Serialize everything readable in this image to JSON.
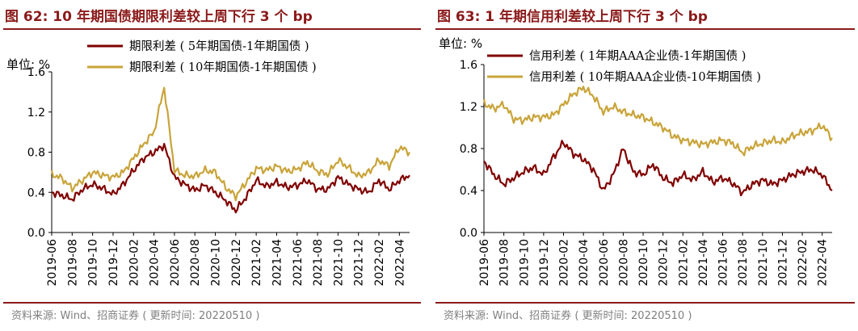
{
  "colors": {
    "dark_red": "#800000",
    "gold": "#c9a43a",
    "title": "#8b1a1a",
    "source": "#7f7f7f"
  },
  "charts": [
    {
      "figure_title": "图 62:  10 年期国债期限利差较上周下行 3 个 bp",
      "unit_label": "单位:  %",
      "source": "资料来源:  Wind、招商证券 ( 更新时间: 20220510 )"
    },
    {
      "figure_title": "图 63:  1 年期信用利差较上周下行 3 个 bp",
      "unit_label": "单位:  %",
      "source": "资料来源:  Wind、招商证券 ( 更新时间: 20220510 )"
    }
  ],
  "chart_data": [
    {
      "type": "line",
      "title": "图 62:  10 年期国债期限利差较上周下行 3 个 bp",
      "ylabel": "单位: %",
      "ylim": [
        0.0,
        1.6
      ],
      "yticks": [
        "0.0",
        "0.4",
        "0.8",
        "1.2",
        "1.6"
      ],
      "x_tick_labels": [
        "2019-06",
        "2019-08",
        "2019-10",
        "2019-12",
        "2020-02",
        "2020-04",
        "2020-06",
        "2020-08",
        "2020-10",
        "2020-12",
        "2021-02",
        "2021-04",
        "2021-06",
        "2021-08",
        "2021-10",
        "2021-12",
        "2022-02",
        "2022-04"
      ],
      "months": [
        "2019-06",
        "2019-07",
        "2019-08",
        "2019-09",
        "2019-10",
        "2019-11",
        "2019-12",
        "2020-01",
        "2020-02",
        "2020-03",
        "2020-04",
        "2020-05",
        "2020-06",
        "2020-07",
        "2020-08",
        "2020-09",
        "2020-10",
        "2020-11",
        "2020-12",
        "2021-01",
        "2021-02",
        "2021-03",
        "2021-04",
        "2021-05",
        "2021-06",
        "2021-07",
        "2021-08",
        "2021-09",
        "2021-10",
        "2021-11",
        "2021-12",
        "2022-01",
        "2022-02",
        "2022-03",
        "2022-04",
        "2022-05"
      ],
      "series": [
        {
          "name": "期限利差 ( 5年期国债-1年期国债 )",
          "color": "#800000",
          "values": [
            0.4,
            0.37,
            0.33,
            0.43,
            0.48,
            0.44,
            0.38,
            0.48,
            0.62,
            0.74,
            0.8,
            0.87,
            0.55,
            0.48,
            0.42,
            0.47,
            0.4,
            0.32,
            0.22,
            0.35,
            0.52,
            0.46,
            0.5,
            0.45,
            0.47,
            0.52,
            0.43,
            0.43,
            0.55,
            0.48,
            0.43,
            0.4,
            0.52,
            0.43,
            0.52,
            0.57
          ]
        },
        {
          "name": "期限利差 ( 10年期国债-1年期国债 )",
          "color": "#c9a43a",
          "values": [
            0.58,
            0.54,
            0.44,
            0.52,
            0.6,
            0.57,
            0.55,
            0.6,
            0.74,
            0.88,
            1.0,
            1.45,
            0.62,
            0.57,
            0.56,
            0.62,
            0.6,
            0.45,
            0.36,
            0.5,
            0.64,
            0.62,
            0.66,
            0.61,
            0.63,
            0.7,
            0.61,
            0.58,
            0.72,
            0.65,
            0.56,
            0.6,
            0.72,
            0.66,
            0.85,
            0.8
          ]
        }
      ]
    },
    {
      "type": "line",
      "title": "图 63:  1 年期信用利差较上周下行 3 个 bp",
      "ylabel": "单位: %",
      "ylim": [
        0.0,
        1.6
      ],
      "yticks": [
        "0.0",
        "0.4",
        "0.8",
        "1.2",
        "1.6"
      ],
      "x_tick_labels": [
        "2019-06",
        "2019-08",
        "2019-10",
        "2019-12",
        "2020-02",
        "2020-04",
        "2020-06",
        "2020-08",
        "2020-10",
        "2020-12",
        "2021-02",
        "2021-04",
        "2021-06",
        "2021-08",
        "2021-10",
        "2021-12",
        "2022-02",
        "2022-04"
      ],
      "months": [
        "2019-06",
        "2019-07",
        "2019-08",
        "2019-09",
        "2019-10",
        "2019-11",
        "2019-12",
        "2020-01",
        "2020-02",
        "2020-03",
        "2020-04",
        "2020-05",
        "2020-06",
        "2020-07",
        "2020-08",
        "2020-09",
        "2020-10",
        "2020-11",
        "2020-12",
        "2021-01",
        "2021-02",
        "2021-03",
        "2021-04",
        "2021-05",
        "2021-06",
        "2021-07",
        "2021-08",
        "2021-09",
        "2021-10",
        "2021-11",
        "2021-12",
        "2022-01",
        "2022-02",
        "2022-03",
        "2022-04",
        "2022-05"
      ],
      "series": [
        {
          "name": "信用利差 ( 1年期AAA企业债-1年期国债 )",
          "color": "#800000",
          "values": [
            0.68,
            0.55,
            0.46,
            0.52,
            0.58,
            0.62,
            0.55,
            0.72,
            0.86,
            0.75,
            0.7,
            0.6,
            0.4,
            0.55,
            0.8,
            0.58,
            0.55,
            0.65,
            0.52,
            0.47,
            0.55,
            0.5,
            0.58,
            0.48,
            0.52,
            0.47,
            0.38,
            0.46,
            0.5,
            0.46,
            0.5,
            0.55,
            0.58,
            0.6,
            0.55,
            0.4
          ]
        },
        {
          "name": "信用利差 ( 10年期AAA企业债-10年期国债 )",
          "color": "#c9a43a",
          "values": [
            1.23,
            1.18,
            1.22,
            1.08,
            1.07,
            1.1,
            1.1,
            1.12,
            1.22,
            1.32,
            1.38,
            1.3,
            1.15,
            1.2,
            1.15,
            1.12,
            1.1,
            1.05,
            1.0,
            0.92,
            0.88,
            0.86,
            0.84,
            0.86,
            0.88,
            0.85,
            0.76,
            0.82,
            0.85,
            0.88,
            0.86,
            0.92,
            0.95,
            0.97,
            1.02,
            0.9
          ]
        }
      ]
    }
  ]
}
